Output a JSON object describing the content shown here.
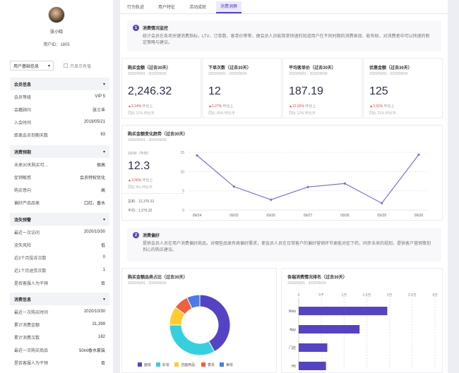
{
  "sidebar": {
    "username": "张小晓",
    "user_id": "用户ID：1805",
    "filter": {
      "selected": "用户基础信息",
      "checkbox_label": "只显示有值"
    },
    "sections": [
      {
        "title": "会员信息",
        "rows": [
          {
            "label": "会员等级",
            "value": "VIP 5"
          },
          {
            "label": "会籍顾问",
            "value": "张三丰"
          },
          {
            "label": "入会时间",
            "value": "2019/05/21"
          },
          {
            "label": "距离会员到期天数",
            "value": "83"
          }
        ]
      },
      {
        "title": "消费预期",
        "rows": [
          {
            "label": "未来30天购买可...",
            "value": "很高"
          },
          {
            "label": "促销敏感",
            "value": "会员特权优化"
          },
          {
            "label": "购买意向",
            "value": "高"
          },
          {
            "label": "偏好产品品类",
            "value": "口红，香水"
          }
        ]
      },
      {
        "title": "流失预警",
        "rows": [
          {
            "label": "最近一次访问",
            "value": "2020/10/30"
          },
          {
            "label": "流失风险",
            "value": "低"
          },
          {
            "label": "近3个月投诉次数",
            "value": "0"
          },
          {
            "label": "近1个月退货次数",
            "value": "1"
          },
          {
            "label": "是否客服人为干预",
            "value": "否"
          }
        ]
      },
      {
        "title": "消费信息",
        "rows": [
          {
            "label": "最近一次购买时间",
            "value": "2020/10/30"
          },
          {
            "label": "累计消费金额",
            "value": "31,399"
          },
          {
            "label": "累计消费次数",
            "value": "182"
          },
          {
            "label": "最近一次购买商品",
            "value": "50ml香水套装"
          },
          {
            "label": "是否客服人为干预",
            "value": "否"
          }
        ]
      }
    ]
  },
  "tabs": [
    "行为轨迹",
    "用户特征",
    "活动成就",
    "消费洞察"
  ],
  "active_tab": 3,
  "section1": {
    "number": "1",
    "title": "消费情况监控",
    "desc": "统计会员在各项关键消费指标，LTV、订单数、客单价等等，便会员人员能简单快速的知道用户在不同时期的消费表现、能有助、对消费者中可以快速的制定策略与建议。"
  },
  "metrics": [
    {
      "label": "购买金额（过去30天）",
      "range": "2020/09/01 - 2020/09/30",
      "value": "2,246.32",
      "change": "▲9.14%",
      "change_note": "环比上",
      "compare": "同比 21% 环比平"
    },
    {
      "label": "下单次数（过去30天）",
      "range": "2020/09/01 - 2020/09/30",
      "value": "12",
      "change": "▲5.27%",
      "change_note": "环比上",
      "compare": "同比 25% 环比平"
    },
    {
      "label": "平均客单价（过去30天）",
      "range": "2020/09/01 - 2020/09/30",
      "value": "187.19",
      "change": "▲12.92%",
      "change_note": "环比上",
      "compare": "同比 12% 环比平"
    },
    {
      "label": "优惠金额（过去30天）",
      "range": "2020/09/01 - 2020/09/30",
      "value": "125",
      "change": "▲3.91%",
      "change_note": "环比上",
      "compare": "同比 21% 环比平"
    }
  ],
  "trend": {
    "title": "购买金额变化趋势（过去30天）",
    "range": "2020/09/01 - 2020/09/30",
    "today_label": "10/30（今日）",
    "today_value": "12.3",
    "today_change": "▲3.56%",
    "today_change_note": "环比上",
    "today_compare": "同比 8% 环比平",
    "total": "总和：12,376.32",
    "avg": "平均：1,376.32"
  },
  "section2": {
    "number": "2",
    "title": "消费偏好",
    "desc": "提供会员人员在用户消费偏好商品，对哪些品类有高偏好需求，使会员人员在日常客户的偏好营销环节更能对症下药，同步未来的规划，提供客户营销策划到心的购买建议。"
  },
  "pie": {
    "title": "购买金额品类占比（过去30天）",
    "range": "2020/09/01 - 2020/09/30"
  },
  "bars": {
    "title": "各端消费情况排名（过去30天）",
    "range": "2020/09/01 - 2020/09/30"
  },
  "chart_data": [
    {
      "type": "line",
      "title": "购买金额变化趋势（过去30天）",
      "x": [
        "09/24",
        "09/25",
        "09/26",
        "09/27",
        "09/28",
        "09/29",
        "09/30"
      ],
      "values": [
        14.2,
        6.1,
        2.7,
        6.0,
        6.9,
        1.8,
        14.4
      ],
      "ylim": [
        0,
        15
      ],
      "yticks": [
        0,
        5,
        10,
        15
      ],
      "color": "#7b6fd8"
    },
    {
      "type": "pie",
      "title": "购买金额品类占比（过去30天）",
      "categories": [
        "面妆",
        "彩妆",
        "洁面用品",
        "香氛",
        "美妆"
      ],
      "values": [
        42,
        33,
        10,
        8,
        7
      ],
      "colors": [
        "#5543c6",
        "#35d0e0",
        "#fecc2f",
        "#f2603c",
        "#4a7be8"
      ],
      "donut": true
    },
    {
      "type": "bar",
      "orientation": "horizontal",
      "title": "各端消费情况排名（过去30天）",
      "categories": [
        "Web",
        "App",
        "门店",
        "H5"
      ],
      "values": [
        19500,
        13400,
        6300,
        6000
      ],
      "xlim": [
        0,
        20000
      ],
      "xticks": [
        "0",
        "5千",
        "1万",
        "1.5万",
        "2万",
        "2.5万",
        "3万"
      ],
      "color": "#5543c6"
    }
  ]
}
